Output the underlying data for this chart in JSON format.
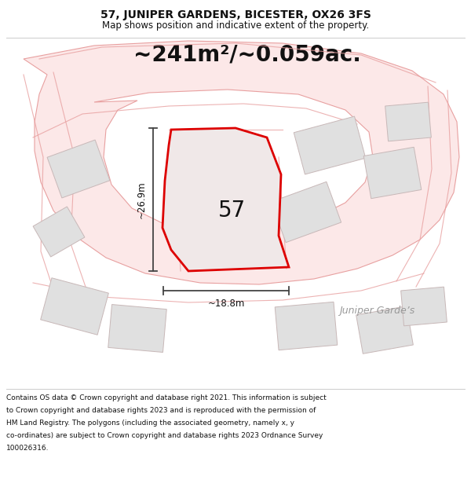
{
  "title_line1": "57, JUNIPER GARDENS, BICESTER, OX26 3FS",
  "title_line2": "Map shows position and indicative extent of the property.",
  "area_text": "~241m²/~0.059ac.",
  "label_57": "57",
  "label_width": "~18.8m",
  "label_height": "~26.9m",
  "label_street": "Juniper Garde’s",
  "bg_color": "#ffffff",
  "map_bg": "#ffffff",
  "plot_fill": "#f0e8e8",
  "plot_edge": "#dd0000",
  "road_color": "#fce8e8",
  "road_edge": "#e8a0a0",
  "building_fill": "#e0e0e0",
  "building_edge": "#c8b8b8",
  "dim_line_color": "#444444",
  "text_color": "#111111",
  "street_label_color": "#999999",
  "footer_lines": [
    "Contains OS data © Crown copyright and database right 2021. This information is subject",
    "to Crown copyright and database rights 2023 and is reproduced with the permission of",
    "HM Land Registry. The polygons (including the associated geometry, namely x, y",
    "co-ordinates) are subject to Crown copyright and database rights 2023 Ordnance Survey",
    "100026316."
  ],
  "title_fontsize": 10,
  "subtitle_fontsize": 8.5,
  "area_fontsize": 20,
  "label57_fontsize": 20,
  "dim_fontsize": 8.5,
  "street_fontsize": 9,
  "footer_fontsize": 6.5
}
